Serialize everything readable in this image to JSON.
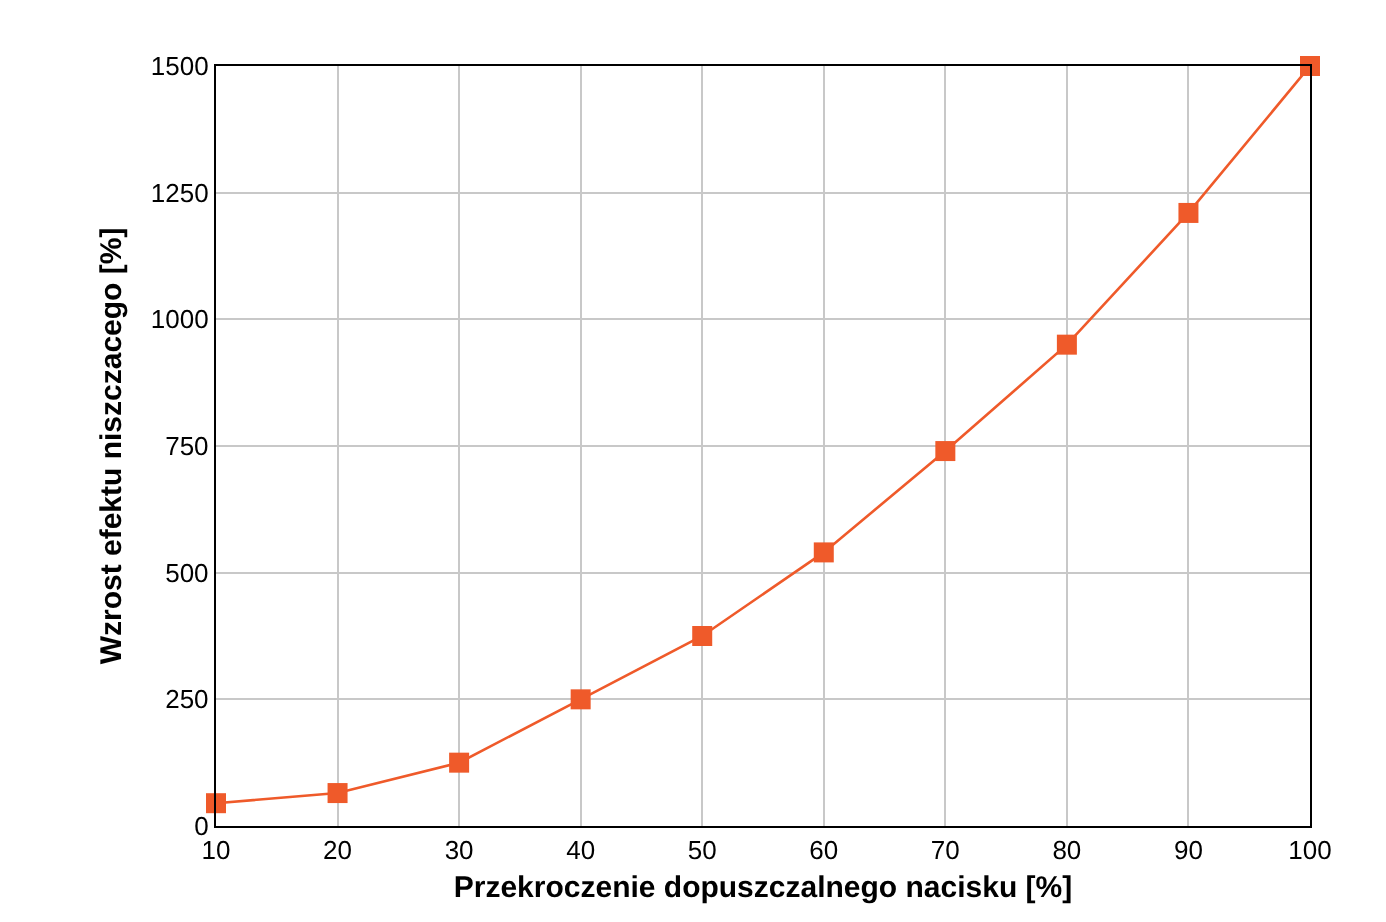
{
  "chart_data": {
    "type": "line",
    "xlabel": "Przekroczenie dopuszczalnego nacisku [%]",
    "ylabel": "Wzrost efektu niszczacego [%]",
    "x": [
      10,
      20,
      30,
      40,
      50,
      60,
      70,
      80,
      90,
      100
    ],
    "series": [
      {
        "color": "#ef5a2a",
        "values": [
          45,
          65,
          125,
          250,
          375,
          540,
          740,
          950,
          1210,
          1500
        ]
      }
    ],
    "xlim": [
      10,
      100
    ],
    "xticks": [
      10,
      20,
      30,
      40,
      50,
      60,
      70,
      80,
      90,
      100
    ],
    "ylim": [
      0,
      1500
    ],
    "yticks": [
      0,
      250,
      500,
      750,
      1000,
      1250,
      1500
    ],
    "grid": true,
    "marker": "square",
    "line_style": "solid",
    "legend": false
  }
}
